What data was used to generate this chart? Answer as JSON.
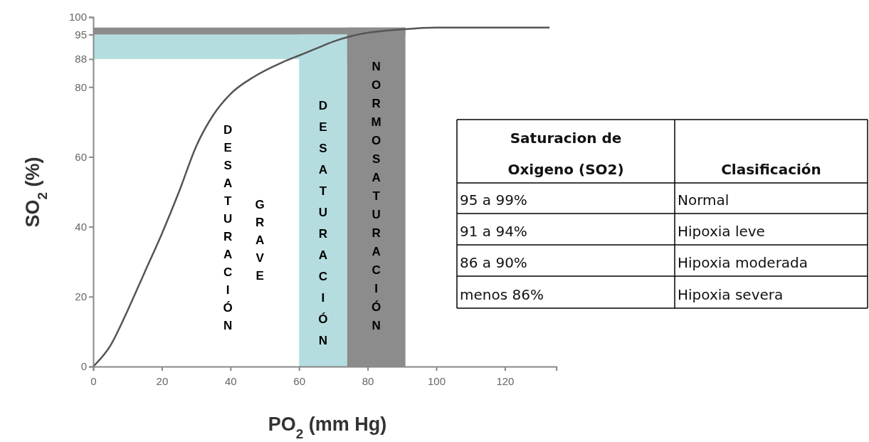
{
  "chart_data": [
    {
      "type": "line",
      "xlabel": "PO$_{2}$ (mm Hg)",
      "ylabel": "SO$_{2}$ (%)",
      "xlim": [
        0,
        135
      ],
      "ylim": [
        0,
        100
      ],
      "xticks": [
        0,
        20,
        40,
        60,
        80,
        100,
        120
      ],
      "yticks": [
        0,
        20,
        40,
        60,
        80,
        88,
        95,
        100
      ],
      "grid": false,
      "legend": false,
      "marker": "none",
      "line_style": "solid",
      "series": [
        {
          "color": "#555555",
          "x": [
            0,
            5,
            10,
            15,
            20,
            25,
            30,
            35,
            40,
            47,
            55,
            60,
            65,
            70,
            75,
            80,
            90,
            100,
            115,
            133
          ],
          "values": [
            0,
            6,
            16,
            27,
            38,
            50,
            63,
            72,
            78,
            83,
            87,
            89,
            91,
            93,
            94.5,
            95.5,
            96.5,
            97,
            97,
            97
          ]
        }
      ],
      "bands": [
        {
          "axis": "x",
          "from": 60,
          "to": 74,
          "label": "DESATURACIÓN",
          "color": "#b5dde0"
        },
        {
          "axis": "x",
          "from": 74,
          "to": 91,
          "label": "NORMOSATURACIÓN",
          "color": "#8c8c8c"
        },
        {
          "axis": "y",
          "from": 88,
          "to": 95,
          "color": "#b5dde0"
        },
        {
          "axis": "y",
          "from": 95,
          "to": 97,
          "color": "#8c8c8c"
        }
      ],
      "annotations": [
        "DESATURACIÓN GRAVE"
      ]
    },
    {
      "type": "other",
      "annotations": [
        "Saturacion de Oxigeno (SO2)",
        "Clasificación",
        "95 a 99%",
        "Normal",
        "91 a 94%",
        "Hipoxia leve",
        "86 a 90%",
        "Hipoxia moderada",
        "menos 86%",
        "Hipoxia severa"
      ]
    }
  ]
}
